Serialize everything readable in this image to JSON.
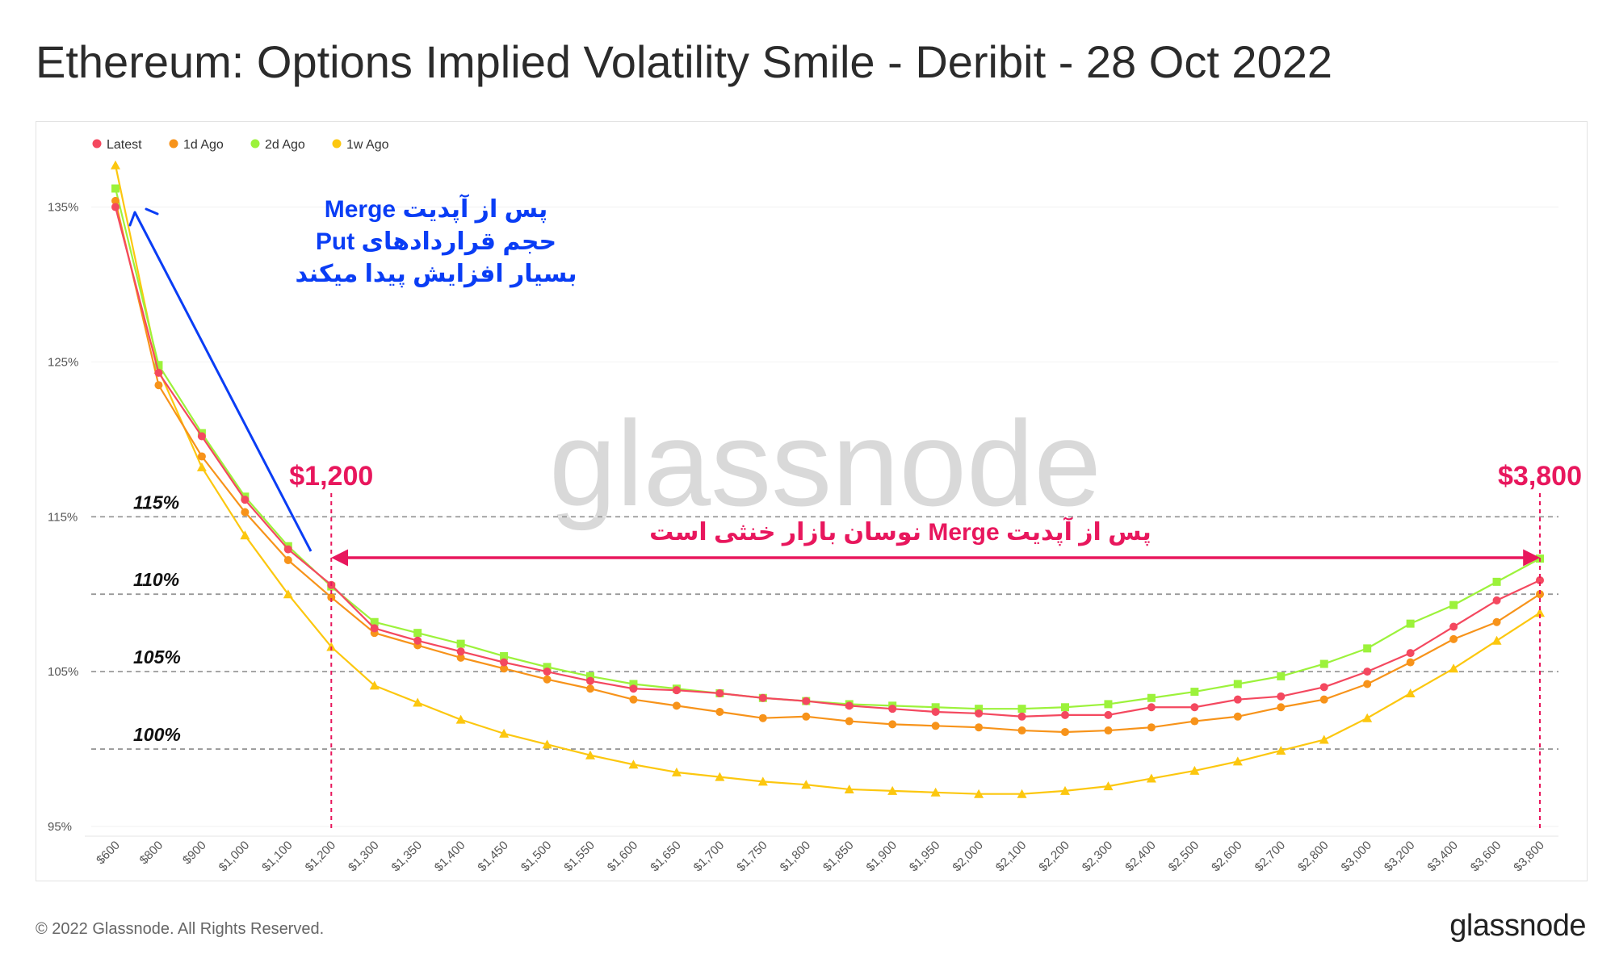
{
  "title": "Ethereum: Options Implied Volatility Smile - Deribit - 28 Oct 2022",
  "footer": {
    "copyright": "© 2022 Glassnode. All Rights Reserved.",
    "logo": "glassnode"
  },
  "watermark": "glassnode",
  "chart_data": {
    "type": "line",
    "title": "Ethereum: Options Implied Volatility Smile - Deribit - 28 Oct 2022",
    "xlabel": "",
    "ylabel": "",
    "categories": [
      "$600",
      "$800",
      "$900",
      "$1,000",
      "$1,100",
      "$1,200",
      "$1,300",
      "$1,350",
      "$1,400",
      "$1,450",
      "$1,500",
      "$1,550",
      "$1,600",
      "$1,650",
      "$1,700",
      "$1,750",
      "$1,800",
      "$1,850",
      "$1,900",
      "$1,950",
      "$2,000",
      "$2,100",
      "$2,200",
      "$2,300",
      "$2,400",
      "$2,500",
      "$2,600",
      "$2,700",
      "$2,800",
      "$3,000",
      "$3,200",
      "$3,400",
      "$3,600",
      "$3,800"
    ],
    "ylim": [
      95,
      138
    ],
    "yticks": [
      95,
      105,
      115,
      125,
      135
    ],
    "ytick_labels": [
      "95%",
      "105%",
      "115%",
      "125%",
      "135%"
    ],
    "legend_position": "top-left",
    "grid": false,
    "series": [
      {
        "name": "Latest",
        "color": "#f4485f",
        "marker": "circle",
        "values": [
          135.0,
          124.3,
          120.2,
          116.1,
          112.9,
          110.6,
          107.8,
          107.0,
          106.3,
          105.6,
          105.0,
          104.4,
          103.9,
          103.8,
          103.6,
          103.3,
          103.1,
          102.8,
          102.6,
          102.4,
          102.3,
          102.1,
          102.2,
          102.2,
          102.7,
          102.7,
          103.2,
          103.4,
          104.0,
          105.0,
          106.2,
          107.9,
          109.6,
          110.9
        ]
      },
      {
        "name": "1d Ago",
        "color": "#f7931a",
        "marker": "circle",
        "values": [
          135.4,
          123.5,
          118.9,
          115.3,
          112.2,
          109.8,
          107.5,
          106.7,
          105.9,
          105.2,
          104.5,
          103.9,
          103.2,
          102.8,
          102.4,
          102.0,
          102.1,
          101.8,
          101.6,
          101.5,
          101.4,
          101.2,
          101.1,
          101.2,
          101.4,
          101.8,
          102.1,
          102.7,
          103.2,
          104.2,
          105.6,
          107.1,
          108.2,
          110.0
        ]
      },
      {
        "name": "2d Ago",
        "color": "#9cf23b",
        "marker": "square",
        "values": [
          136.2,
          124.8,
          120.4,
          116.3,
          113.1,
          110.5,
          108.2,
          107.5,
          106.8,
          106.0,
          105.3,
          104.7,
          104.2,
          103.9,
          103.6,
          103.3,
          103.1,
          102.9,
          102.8,
          102.7,
          102.6,
          102.6,
          102.7,
          102.9,
          103.3,
          103.7,
          104.2,
          104.7,
          105.5,
          106.5,
          108.1,
          109.3,
          110.8,
          112.3
        ]
      },
      {
        "name": "1w Ago",
        "color": "#fcc70f",
        "marker": "triangle",
        "values": [
          137.7,
          124.5,
          118.2,
          113.8,
          110.0,
          106.6,
          104.1,
          103.0,
          101.9,
          101.0,
          100.3,
          99.6,
          99.0,
          98.5,
          98.2,
          97.9,
          97.7,
          97.4,
          97.3,
          97.2,
          97.1,
          97.1,
          97.3,
          97.6,
          98.1,
          98.6,
          99.2,
          99.9,
          100.6,
          102.0,
          103.6,
          105.2,
          107.0,
          108.8
        ]
      }
    ],
    "annotations": {
      "reference_lines": [
        {
          "value": 115,
          "label": "115%"
        },
        {
          "value": 110,
          "label": "110%"
        },
        {
          "value": 105,
          "label": "105%"
        },
        {
          "value": 100,
          "label": "100%"
        }
      ],
      "range_start_label": "$1,200",
      "range_end_label": "$3,800",
      "range_text": "پس از آپدیت Merge  نوسان بازار خنثی است",
      "put_note_lines": [
        "پس از آپدیت Merge",
        "حجم قراردادهای Put",
        "بسیار افزایش پیدا میکند"
      ],
      "range_color": "#e8175d",
      "note_color": "#0a3df5"
    }
  }
}
